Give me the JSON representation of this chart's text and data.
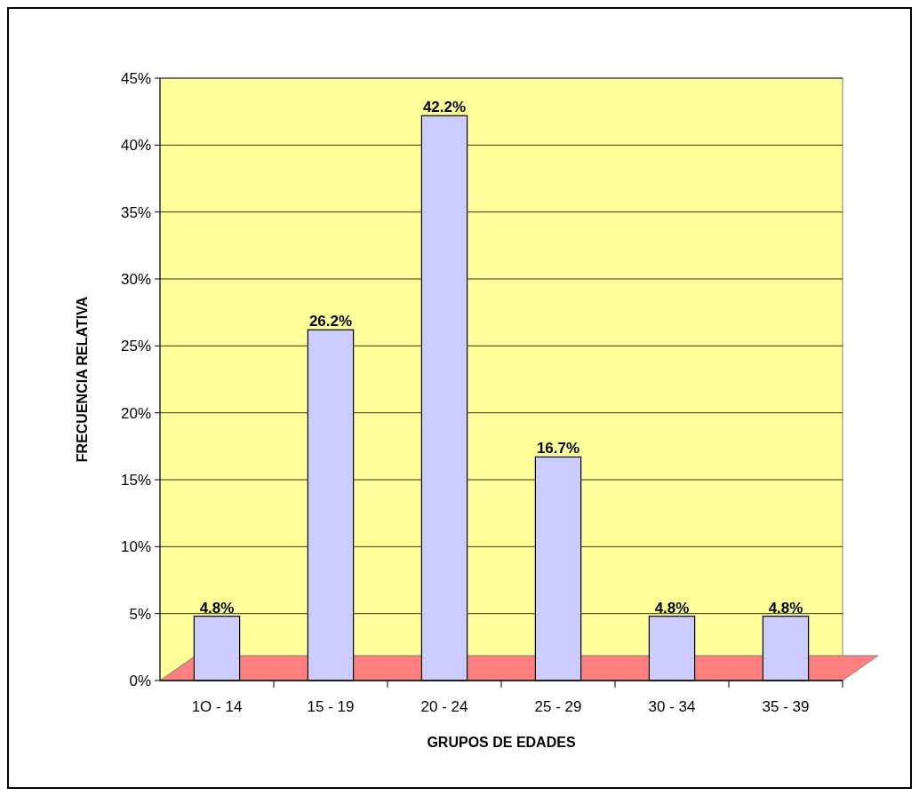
{
  "chart_data": {
    "type": "bar",
    "xlabel": "GRUPOS DE EDADES",
    "ylabel": "FRECUENCIA RELATIVA",
    "categories": [
      "1O - 14",
      "15 - 19",
      "20 - 24",
      "25 - 29",
      "30 - 34",
      "35 - 39"
    ],
    "values": [
      4.8,
      26.2,
      42.2,
      16.7,
      4.8,
      4.8
    ],
    "value_labels": [
      "4.8%",
      "26.2%",
      "42.2%",
      "16.7%",
      "4.8%",
      "4.8%"
    ],
    "color": "#ccccff",
    "ylim": [
      0,
      45
    ],
    "yticks": [
      {
        "value": 0,
        "label": "0%"
      },
      {
        "value": 5,
        "label": "5%"
      },
      {
        "value": 10,
        "label": "10%"
      },
      {
        "value": 15,
        "label": "15%"
      },
      {
        "value": 20,
        "label": "20%"
      },
      {
        "value": 25,
        "label": "25%"
      },
      {
        "value": 30,
        "label": "30%"
      },
      {
        "value": 35,
        "label": "35%"
      },
      {
        "value": 40,
        "label": "40%"
      },
      {
        "value": 45,
        "label": "45%"
      }
    ],
    "grid": "y"
  }
}
